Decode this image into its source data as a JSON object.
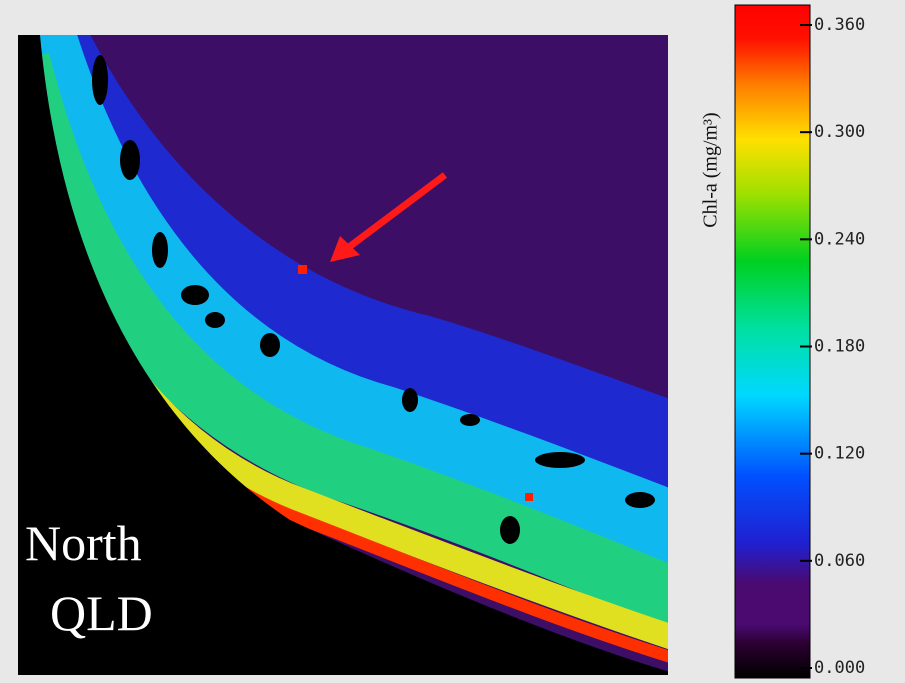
{
  "map": {
    "region_label_line1": "North",
    "region_label_line2": "QLD"
  },
  "colorbar": {
    "label": "Chl-a (mg/m³)",
    "lim": [
      0,
      0.36
    ],
    "ticks": [
      {
        "value": 0,
        "label": "0.000"
      },
      {
        "value": 0.06,
        "label": "0.060"
      },
      {
        "value": 0.12,
        "label": "0.120"
      },
      {
        "value": 0.18,
        "label": "0.180"
      },
      {
        "value": 0.24,
        "label": "0.240"
      },
      {
        "value": 0.3,
        "label": "0.300"
      },
      {
        "value": 0.36,
        "label": "0.360"
      }
    ]
  }
}
